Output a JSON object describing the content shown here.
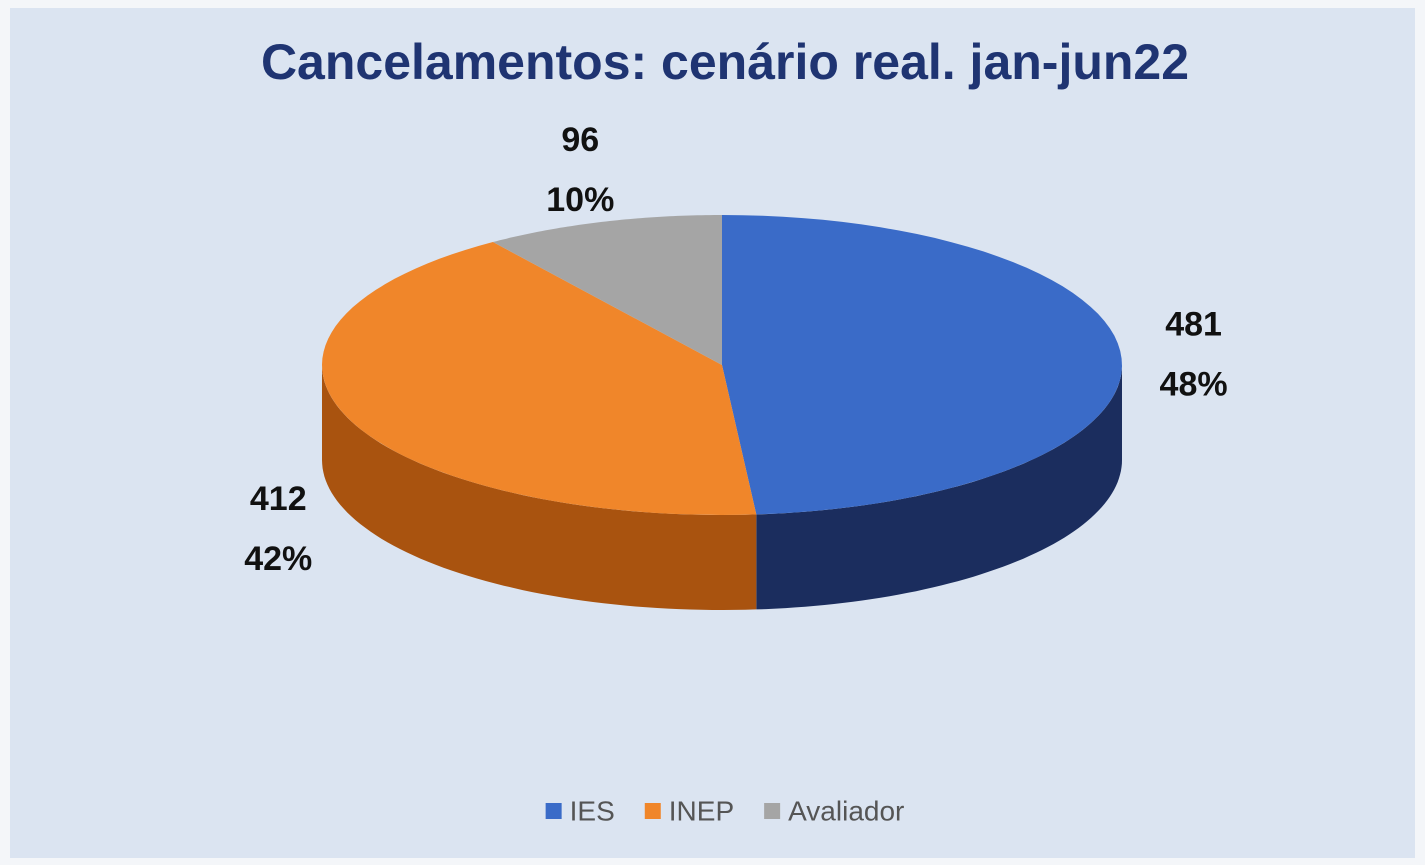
{
  "chart_data": {
    "type": "pie3d",
    "title": "Cancelamentos: cenário real. jan-jun22",
    "categories": [
      "IES",
      "INEP",
      "Avaliador"
    ],
    "values": [
      481,
      412,
      96
    ],
    "percentages": [
      48,
      42,
      10
    ],
    "percentage_labels": [
      "48%",
      "42%",
      "10%"
    ],
    "colors": [
      "#3a6bc8",
      "#f0862a",
      "#a5a5a5"
    ],
    "side_colors": [
      "#1b2d5e",
      "#a9530f",
      "#6f6f6f"
    ],
    "legend": "bottom"
  }
}
